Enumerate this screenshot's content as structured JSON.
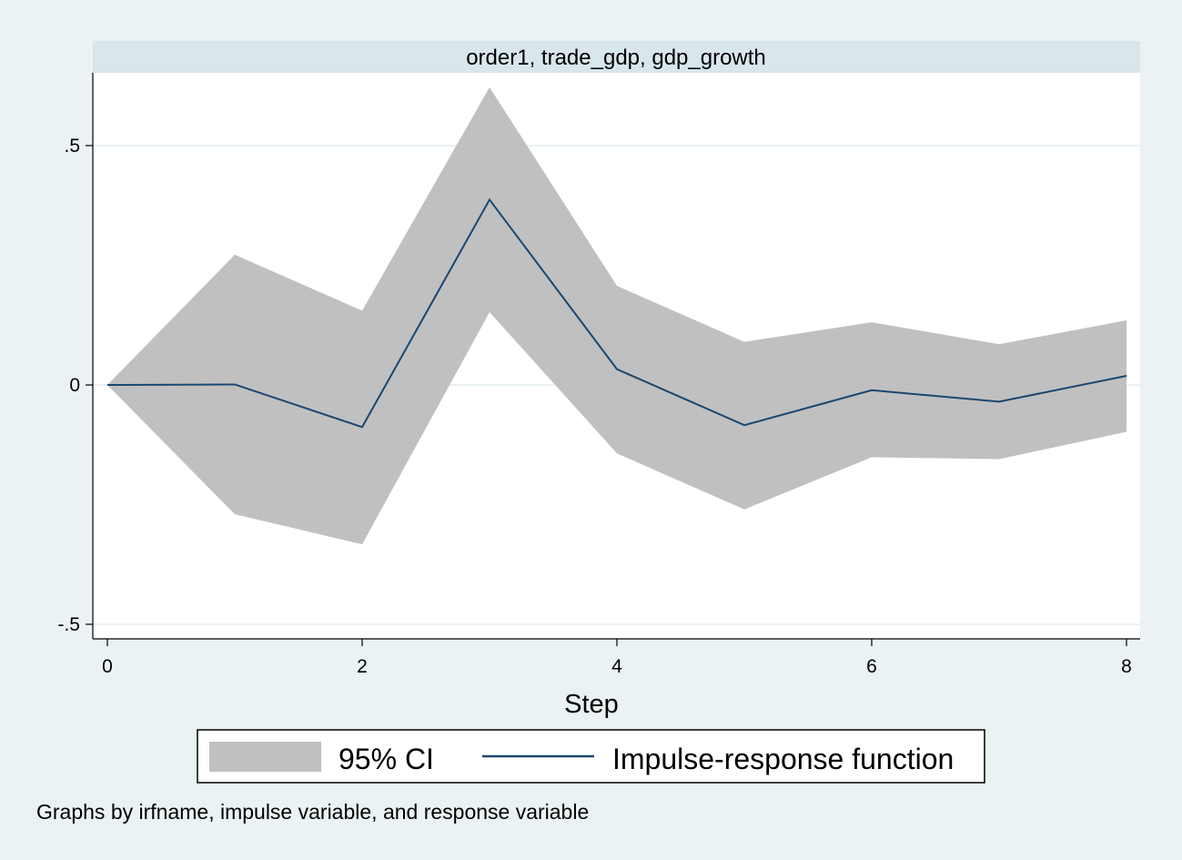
{
  "chart_data": {
    "type": "line",
    "title": "order1, trade_gdp, gdp_growth",
    "xlabel": "Step",
    "ylabel": "",
    "xlim": [
      0,
      8
    ],
    "ylim": [
      -0.5,
      0.5
    ],
    "x_ticks": [
      0,
      2,
      4,
      6,
      8
    ],
    "x_tick_labels": [
      "0",
      "2",
      "4",
      "6",
      "8"
    ],
    "y_ticks": [
      0.5,
      0,
      -0.5
    ],
    "y_tick_labels": [
      ".5",
      "0",
      "-.5"
    ],
    "grid": true,
    "legend_position": "bottom",
    "x": [
      0,
      1,
      2,
      3,
      4,
      5,
      6,
      7,
      8
    ],
    "series": [
      {
        "name": "Impulse-response function",
        "type": "line",
        "color": "#1a476f",
        "values": [
          0,
          0.001,
          -0.088,
          0.387,
          0.033,
          -0.084,
          -0.011,
          -0.035,
          0.019
        ]
      },
      {
        "name": "95% CI",
        "type": "band",
        "color": "#c0c0c0",
        "lower": [
          0,
          -0.27,
          -0.333,
          0.152,
          -0.143,
          -0.26,
          -0.151,
          -0.155,
          -0.098
        ],
        "upper": [
          0,
          0.272,
          0.155,
          0.622,
          0.207,
          0.09,
          0.131,
          0.085,
          0.135
        ]
      }
    ],
    "legend": {
      "band_label": "95% CI",
      "line_label": "Impulse-response function"
    },
    "note": "Graphs by irfname, impulse variable, and response variable"
  }
}
